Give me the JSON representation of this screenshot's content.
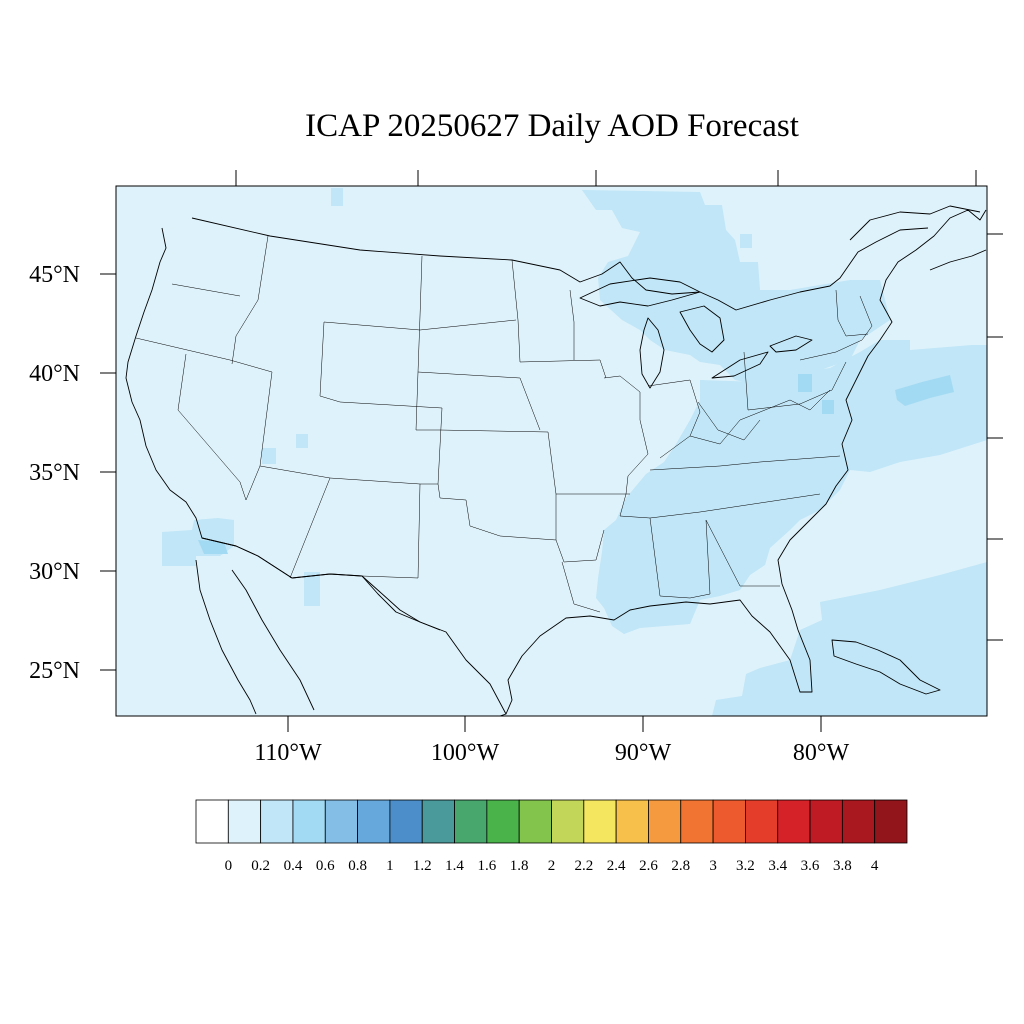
{
  "title": "ICAP 20250627 Daily AOD Forecast",
  "map": {
    "projection": "lambert-conformal",
    "region": "Contiguous United States",
    "background_color": "#def2fb",
    "lat_labels": [
      "45°N",
      "40°N",
      "35°N",
      "30°N",
      "25°N"
    ],
    "lon_labels": [
      "110°W",
      "100°W",
      "90°W",
      "80°W"
    ],
    "aod_field": [
      {
        "region": "Northern Plains plume",
        "level": "0.2-0.4",
        "color": "#c0e6f7"
      },
      {
        "region": "Great Lakes / Northeast",
        "level": "0.2-0.4",
        "color": "#c0e6f7"
      },
      {
        "region": "Mid-Atlantic offshore",
        "level": "0.4-0.6",
        "color": "#a3daf3"
      },
      {
        "region": "Gulf Coast / Southeast",
        "level": "0.2-0.4",
        "color": "#c0e6f7"
      },
      {
        "region": "Western Atlantic (Bahamas)",
        "level": "0.2-0.4",
        "color": "#c0e6f7"
      },
      {
        "region": "Southwest / Baja border",
        "level": "0.2-0.4",
        "color": "#c0e6f7"
      },
      {
        "region": "Rest of domain",
        "level": "0-0.2",
        "color": "#def2fb"
      }
    ]
  },
  "colorbar": {
    "labels": [
      "0",
      "0.2",
      "0.4",
      "0.6",
      "0.8",
      "1",
      "1.2",
      "1.4",
      "1.6",
      "1.8",
      "2",
      "2.2",
      "2.4",
      "2.6",
      "2.8",
      "3",
      "3.2",
      "3.4",
      "3.6",
      "3.8",
      "4"
    ],
    "colors": [
      "#ffffff",
      "#def2fb",
      "#c0e6f7",
      "#a3daf3",
      "#84bde5",
      "#67a8dc",
      "#4b8ec9",
      "#4a999b",
      "#48a76d",
      "#4ab34a",
      "#83c44d",
      "#c2d65a",
      "#f5e660",
      "#f6c04a",
      "#f69a3f",
      "#f27432",
      "#ec5a2d",
      "#e43d29",
      "#d52128",
      "#be1b24",
      "#a9181f",
      "#92151c"
    ]
  }
}
